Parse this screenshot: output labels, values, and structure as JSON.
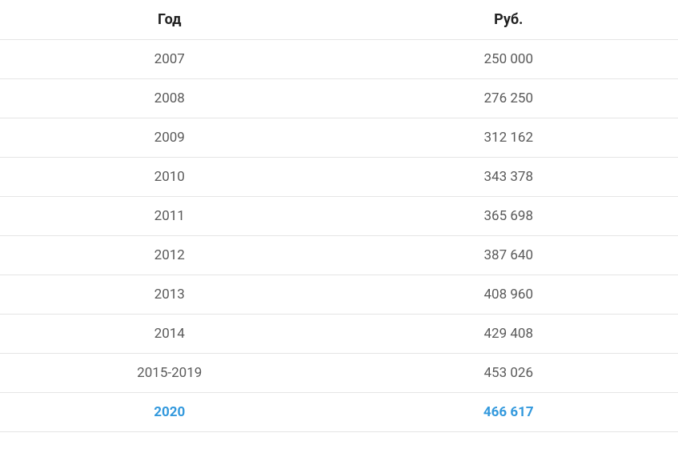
{
  "table": {
    "type": "table",
    "columns": [
      "Год",
      "Руб."
    ],
    "rows": [
      {
        "year": "2007",
        "value": "250 000",
        "highlight": false
      },
      {
        "year": "2008",
        "value": "276 250",
        "highlight": false
      },
      {
        "year": "2009",
        "value": "312 162",
        "highlight": false
      },
      {
        "year": "2010",
        "value": "343 378",
        "highlight": false
      },
      {
        "year": "2011",
        "value": "365 698",
        "highlight": false
      },
      {
        "year": "2012",
        "value": "387 640",
        "highlight": false
      },
      {
        "year": "2013",
        "value": "408 960",
        "highlight": false
      },
      {
        "year": "2014",
        "value": "429 408",
        "highlight": false
      },
      {
        "year": "2015-2019",
        "value": "453 026",
        "highlight": false
      },
      {
        "year": "2020",
        "value": "466 617",
        "highlight": true
      }
    ],
    "styling": {
      "header_fontsize": 18,
      "header_fontweight": 700,
      "header_color": "#222222",
      "cell_fontsize": 17,
      "cell_color": "#5a5a5a",
      "highlight_color": "#3399dd",
      "highlight_fontweight": 700,
      "border_color": "#e5e5e5",
      "background_color": "#ffffff",
      "cell_padding": "14px 10px",
      "column_widths": [
        "50%",
        "50%"
      ],
      "text_align": "center"
    }
  }
}
